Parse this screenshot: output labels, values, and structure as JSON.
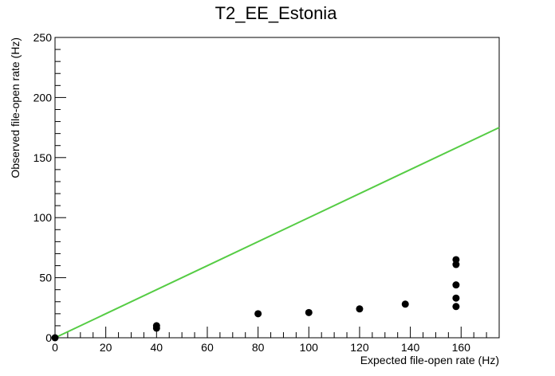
{
  "chart_data": {
    "type": "scatter",
    "title": "T2_EE_Estonia",
    "xlabel": "Expected file-open rate (Hz)",
    "ylabel": "Observed file-open rate (Hz)",
    "xlim": [
      0,
      175
    ],
    "ylim": [
      0,
      250
    ],
    "x_ticks": [
      0,
      20,
      40,
      60,
      80,
      100,
      120,
      140,
      160
    ],
    "y_ticks": [
      0,
      50,
      100,
      150,
      200,
      250
    ],
    "grid": false,
    "points": [
      {
        "x": 0,
        "y": 0
      },
      {
        "x": 40,
        "y": 8
      },
      {
        "x": 40,
        "y": 10
      },
      {
        "x": 80,
        "y": 20
      },
      {
        "x": 100,
        "y": 21
      },
      {
        "x": 120,
        "y": 24
      },
      {
        "x": 138,
        "y": 28
      },
      {
        "x": 158,
        "y": 26
      },
      {
        "x": 158,
        "y": 33
      },
      {
        "x": 158,
        "y": 44
      },
      {
        "x": 158,
        "y": 61
      },
      {
        "x": 158,
        "y": 65
      }
    ],
    "reference_line": {
      "x": [
        0,
        175
      ],
      "y": [
        0,
        175
      ],
      "color": "#55cc44"
    },
    "marker_color": "#000000"
  }
}
